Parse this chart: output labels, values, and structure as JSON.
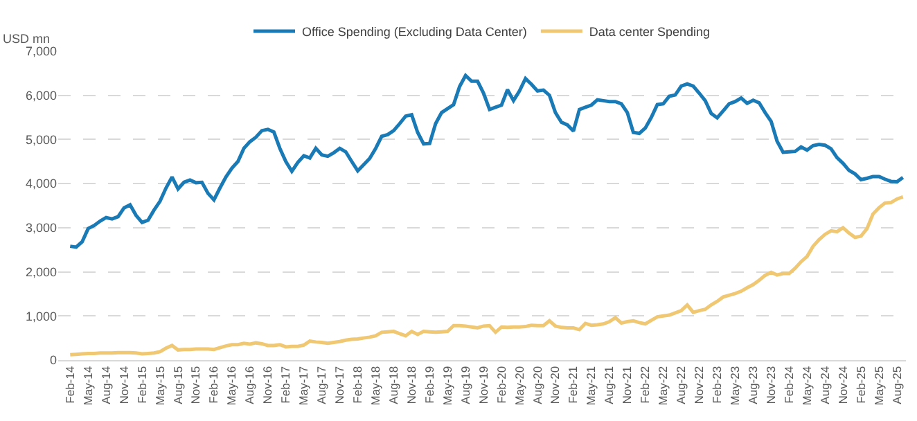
{
  "chart_data": {
    "type": "line",
    "ylabel": "USD mn",
    "categories": [
      "Feb-14",
      null,
      null,
      "May-14",
      null,
      null,
      "Aug-14",
      null,
      null,
      "Nov-14",
      null,
      null,
      "Feb-15",
      null,
      null,
      "May-15",
      null,
      null,
      "Aug-15",
      null,
      null,
      "Nov-15",
      null,
      null,
      "Feb-16",
      null,
      null,
      "May-16",
      null,
      null,
      "Aug-16",
      null,
      null,
      "Nov-16",
      null,
      null,
      "Feb-17",
      null,
      null,
      "May-17",
      null,
      null,
      "Aug-17",
      null,
      null,
      "Nov-17",
      null,
      null,
      "Feb-18",
      null,
      null,
      "May-18",
      null,
      null,
      "Aug-18",
      null,
      null,
      "Nov-18",
      null,
      null,
      "Feb-19",
      null,
      null,
      "May-19",
      null,
      null,
      "Aug-19",
      null,
      null,
      "Nov-19",
      null,
      null,
      "Feb-20",
      null,
      null,
      "May-20",
      null,
      null,
      "Aug-20",
      null,
      null,
      "Nov-20",
      null,
      null,
      "Feb-21",
      null,
      null,
      "May-21",
      null,
      null,
      "Aug-21",
      null,
      null,
      "Nov-21",
      null,
      null,
      "Feb-22",
      null,
      null,
      "May-22",
      null,
      null,
      "Aug-22",
      null,
      null,
      "Nov-22",
      null,
      null,
      "Feb-23",
      null,
      null,
      "May-23",
      null,
      null,
      "Aug-23",
      null,
      null,
      "Nov-23",
      null,
      null,
      "Feb-24",
      null,
      null,
      "May-24",
      null,
      null,
      "Aug-24",
      null,
      null,
      "Nov-24",
      null,
      null,
      "Feb-25",
      null,
      null,
      "May-25",
      null,
      null,
      "Aug-25",
      null
    ],
    "series": [
      {
        "name": "Office Spending (Excluding Data Center)",
        "color": "#1a7ab5",
        "values": [
          2580,
          2560,
          2680,
          2980,
          3050,
          3150,
          3230,
          3200,
          3250,
          3450,
          3520,
          3280,
          3120,
          3170,
          3400,
          3600,
          3900,
          4150,
          3880,
          4030,
          4080,
          4020,
          4030,
          3780,
          3630,
          3900,
          4150,
          4350,
          4500,
          4800,
          4950,
          5050,
          5200,
          5230,
          5170,
          4800,
          4500,
          4280,
          4480,
          4630,
          4580,
          4800,
          4650,
          4620,
          4700,
          4800,
          4720,
          4500,
          4290,
          4430,
          4570,
          4800,
          5070,
          5110,
          5200,
          5360,
          5530,
          5560,
          5160,
          4900,
          4910,
          5360,
          5610,
          5700,
          5790,
          6200,
          6450,
          6320,
          6320,
          6050,
          5680,
          5730,
          5780,
          6130,
          5880,
          6100,
          6380,
          6250,
          6100,
          6120,
          6000,
          5610,
          5390,
          5330,
          5190,
          5680,
          5730,
          5780,
          5900,
          5880,
          5860,
          5860,
          5810,
          5610,
          5160,
          5140,
          5260,
          5500,
          5790,
          5810,
          5980,
          6010,
          6210,
          6260,
          6210,
          6050,
          5880,
          5590,
          5490,
          5650,
          5810,
          5860,
          5940,
          5820,
          5890,
          5830,
          5610,
          5410,
          4960,
          4710,
          4720,
          4730,
          4830,
          4760,
          4860,
          4890,
          4870,
          4790,
          4590,
          4460,
          4300,
          4220,
          4090,
          4120,
          4160,
          4160,
          4100,
          4050,
          4040,
          4140
        ]
      },
      {
        "name": "Data center Spending",
        "color": "#f0c873",
        "values": [
          120,
          130,
          140,
          150,
          150,
          160,
          160,
          160,
          170,
          170,
          170,
          160,
          140,
          150,
          160,
          190,
          270,
          330,
          230,
          240,
          240,
          250,
          250,
          250,
          240,
          280,
          320,
          350,
          350,
          380,
          360,
          390,
          370,
          330,
          330,
          350,
          300,
          310,
          310,
          340,
          430,
          410,
          400,
          380,
          400,
          420,
          450,
          470,
          480,
          500,
          520,
          550,
          630,
          640,
          650,
          600,
          550,
          650,
          580,
          650,
          640,
          630,
          640,
          650,
          780,
          780,
          770,
          750,
          730,
          770,
          780,
          630,
          750,
          740,
          750,
          750,
          760,
          790,
          780,
          780,
          890,
          770,
          740,
          730,
          730,
          690,
          830,
          790,
          800,
          820,
          870,
          960,
          840,
          870,
          890,
          850,
          820,
          900,
          980,
          1000,
          1020,
          1070,
          1120,
          1250,
          1080,
          1120,
          1150,
          1250,
          1330,
          1430,
          1470,
          1510,
          1560,
          1640,
          1710,
          1810,
          1920,
          1990,
          1930,
          1960,
          1960,
          2080,
          2230,
          2350,
          2580,
          2730,
          2850,
          2930,
          2910,
          3000,
          2880,
          2780,
          2810,
          2980,
          3310,
          3450,
          3560,
          3570,
          3650,
          3700
        ]
      }
    ],
    "ylim": [
      0,
      7000
    ],
    "yticks": [
      {
        "value": 0,
        "label": "0"
      },
      {
        "value": 1000,
        "label": "1,000"
      },
      {
        "value": 2000,
        "label": "2,000"
      },
      {
        "value": 3000,
        "label": "3,000"
      },
      {
        "value": 4000,
        "label": "4,000"
      },
      {
        "value": 5000,
        "label": "5,000"
      },
      {
        "value": 6000,
        "label": "6,000"
      },
      {
        "value": 7000,
        "label": "7,000"
      }
    ],
    "grid": "y",
    "legend": "top",
    "marker": "none",
    "line_style": "solid"
  }
}
